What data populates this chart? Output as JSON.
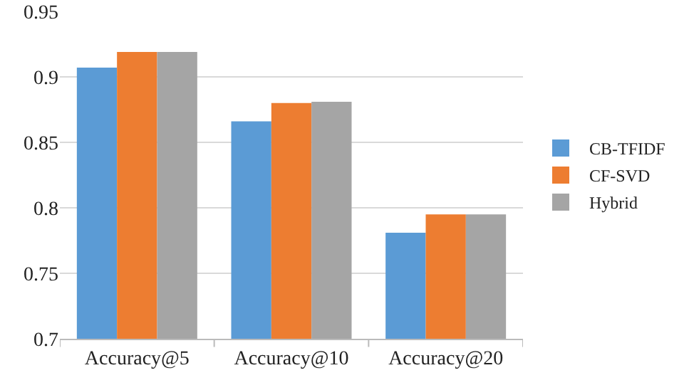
{
  "chart_data": {
    "type": "bar",
    "categories": [
      "Accuracy@5",
      "Accuracy@10",
      "Accuracy@20"
    ],
    "series": [
      {
        "name": "CB-TFIDF",
        "color": "#5b9bd5",
        "values": [
          0.907,
          0.866,
          0.781
        ]
      },
      {
        "name": "CF-SVD",
        "color": "#ed7d31",
        "values": [
          0.919,
          0.88,
          0.795
        ]
      },
      {
        "name": "Hybrid",
        "color": "#a5a5a5",
        "values": [
          0.919,
          0.881,
          0.795
        ]
      }
    ],
    "ylim": [
      0.7,
      0.95
    ],
    "yticks": [
      0.7,
      0.75,
      0.8,
      0.85,
      0.9,
      0.95
    ],
    "grid": "y",
    "legend": "right"
  }
}
